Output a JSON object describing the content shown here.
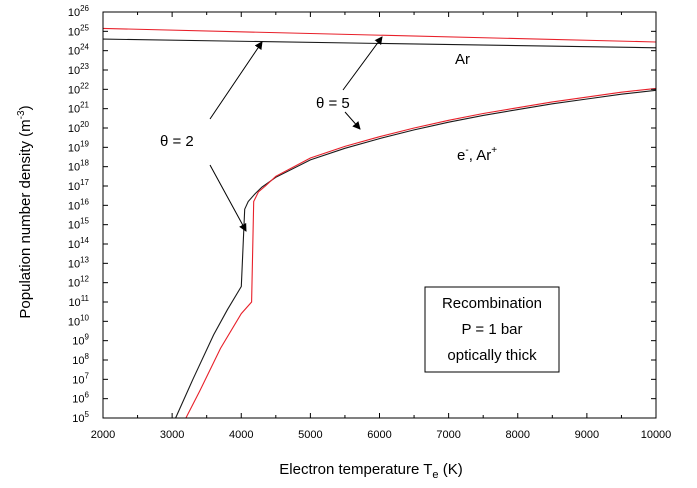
{
  "chart_data": {
    "type": "line",
    "xlabel": "Electron temperature T",
    "xlabel_sub": "e",
    "xlabel_unit": " (K)",
    "ylabel": "Population number density (m",
    "ylabel_sup": "-3",
    "ylabel_end": ")",
    "xlim": [
      2000,
      10000
    ],
    "ylim_log10": [
      5,
      26
    ],
    "y_scale": "log",
    "x_ticks": [
      2000,
      3000,
      4000,
      5000,
      6000,
      7000,
      8000,
      9000,
      10000
    ],
    "x_tick_labels": [
      "2000",
      "3000",
      "4000",
      "5000",
      "6000",
      "7000",
      "8000",
      "9000",
      "10000"
    ],
    "y_tick_exponents": [
      5,
      6,
      7,
      8,
      9,
      10,
      11,
      12,
      13,
      14,
      15,
      16,
      17,
      18,
      19,
      20,
      21,
      22,
      23,
      24,
      25,
      26
    ],
    "y_tick_base": "10",
    "grid": false,
    "colors": {
      "theta2": "#1a1a1a",
      "theta5": "#e8202a"
    },
    "series": [
      {
        "group": "Ar",
        "theta": 2,
        "x": [
          2000,
          10000
        ],
        "log10_y": [
          24.6,
          24.15
        ]
      },
      {
        "group": "Ar",
        "theta": 5,
        "x": [
          2000,
          10000
        ],
        "log10_y": [
          25.15,
          24.45
        ]
      },
      {
        "group": "e-, Ar+",
        "theta": 2,
        "x": [
          3050,
          3300,
          3600,
          3800,
          4000,
          4050,
          4100,
          4200,
          4300,
          4500,
          5000,
          5500,
          6000,
          6500,
          7000,
          7500,
          8000,
          8500,
          9000,
          9500,
          10000
        ],
        "log10_y": [
          5.0,
          7.0,
          9.3,
          10.6,
          11.8,
          15.8,
          16.2,
          16.6,
          16.95,
          17.45,
          18.35,
          18.95,
          19.45,
          19.9,
          20.3,
          20.65,
          20.95,
          21.25,
          21.5,
          21.75,
          21.95
        ]
      },
      {
        "group": "e-, Ar+",
        "theta": 5,
        "x": [
          3200,
          3400,
          3700,
          4000,
          4150,
          4180,
          4250,
          4350,
          4500,
          5000,
          5500,
          6000,
          6500,
          7000,
          7500,
          8000,
          8500,
          9000,
          9500,
          10000
        ],
        "log10_y": [
          5.0,
          6.4,
          8.6,
          10.4,
          11.0,
          16.2,
          16.7,
          17.0,
          17.5,
          18.45,
          19.05,
          19.55,
          20.0,
          20.4,
          20.75,
          21.05,
          21.35,
          21.6,
          21.85,
          22.05
        ]
      }
    ],
    "annotations": {
      "ar_label": "Ar",
      "ion_label_e": "e",
      "ion_label_e_sup": "-",
      "ion_label_mid": ", Ar",
      "ion_label_ar_sup": "+",
      "theta2_label": "θ = 2",
      "theta5_label": "θ = 5"
    },
    "legend": {
      "placement": "lower-right",
      "lines": [
        "Recombination",
        "P = 1 bar",
        "optically thick"
      ]
    }
  }
}
